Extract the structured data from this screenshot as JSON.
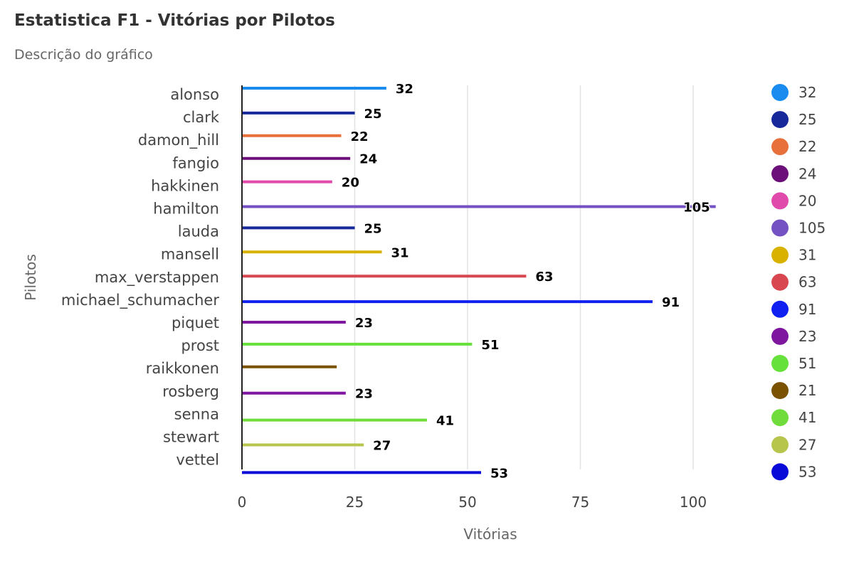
{
  "chart_data": {
    "type": "bar",
    "orientation": "horizontal",
    "title": "Estatistica F1 - Vitórias por Pilotos",
    "subtitle": "Descrição do gráfico",
    "xlabel": "Vitórias",
    "ylabel": "Pilotos",
    "xlim": [
      0,
      105
    ],
    "xticks": [
      0,
      25,
      50,
      75,
      100
    ],
    "grid": true,
    "legend_position": "right",
    "categories": [
      "alonso",
      "clark",
      "damon_hill",
      "fangio",
      "hakkinen",
      "hamilton",
      "lauda",
      "mansell",
      "max_verstappen",
      "michael_schumacher",
      "piquet",
      "prost",
      "raikkonen",
      "rosberg",
      "senna",
      "stewart",
      "vettel"
    ],
    "values": [
      32,
      25,
      22,
      24,
      20,
      105,
      25,
      31,
      63,
      91,
      23,
      51,
      21,
      23,
      41,
      27,
      53
    ],
    "data_labels": [
      "32",
      "25",
      "22",
      "24",
      "20",
      "105",
      "25",
      "31",
      "63",
      "91",
      "23",
      "51",
      "",
      "23",
      "41",
      "27",
      "53"
    ],
    "colors": [
      "#1a8cf0",
      "#16289a",
      "#e8703a",
      "#6c0f7a",
      "#e04aaa",
      "#7552c4",
      "#d9b200",
      "#d84650",
      "#1020f0",
      "#7f16a0",
      "#66e03a",
      "#7a5200",
      "#70dc3c",
      "#b8c54c",
      "#0a0ad8"
    ],
    "bar_colors": [
      "#1a8cf0",
      "#16289a",
      "#e8703a",
      "#6c0f7a",
      "#e04aaa",
      "#7552c4",
      "#16289a",
      "#d9b200",
      "#d84650",
      "#1020f0",
      "#7f16a0",
      "#66e03a",
      "#7a5200",
      "#7f16a0",
      "#70dc3c",
      "#b8c54c",
      "#0a0ad8"
    ],
    "legend": [
      {
        "label": "32",
        "color": "#1a8cf0"
      },
      {
        "label": "25",
        "color": "#16289a"
      },
      {
        "label": "22",
        "color": "#e8703a"
      },
      {
        "label": "24",
        "color": "#6c0f7a"
      },
      {
        "label": "20",
        "color": "#e04aaa"
      },
      {
        "label": "105",
        "color": "#7552c4"
      },
      {
        "label": "31",
        "color": "#d9b200"
      },
      {
        "label": "63",
        "color": "#d84650"
      },
      {
        "label": "91",
        "color": "#1020f0"
      },
      {
        "label": "23",
        "color": "#7f16a0"
      },
      {
        "label": "51",
        "color": "#66e03a"
      },
      {
        "label": "21",
        "color": "#7a5200"
      },
      {
        "label": "41",
        "color": "#70dc3c"
      },
      {
        "label": "27",
        "color": "#b8c54c"
      },
      {
        "label": "53",
        "color": "#0a0ad8"
      }
    ]
  }
}
